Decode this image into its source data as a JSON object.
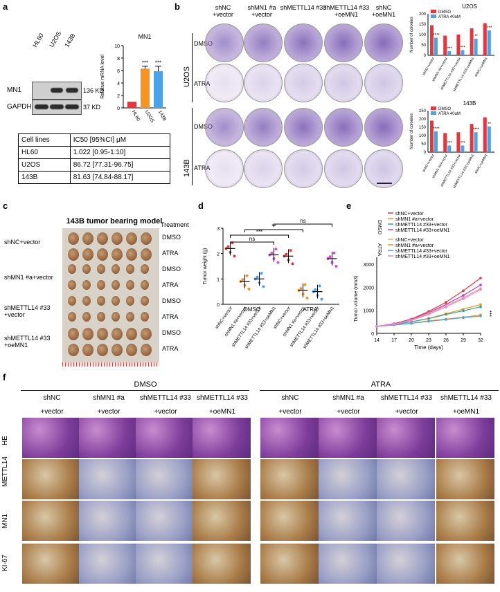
{
  "panels": {
    "a": "a",
    "b": "b",
    "c": "c",
    "d": "d",
    "e": "e",
    "f": "f"
  },
  "a": {
    "blot_lanes": [
      "HL60",
      "U2OS",
      "143B"
    ],
    "blot_rows": [
      {
        "name": "MN1",
        "kd": "136 KD"
      },
      {
        "name": "GAPDH",
        "kd": "37 KD"
      }
    ],
    "table": {
      "header": [
        "Cell lines",
        "IC50 [95%CI] μM"
      ],
      "rows": [
        [
          "HL60",
          "1.022 [0.95-1.10]"
        ],
        [
          "U2OS",
          "86.72 [77.31-96.75]"
        ],
        [
          "143B",
          "81.63 [74.84-88.17]"
        ]
      ]
    }
  },
  "chart_data": [
    {
      "type": "bar",
      "title": "MN1",
      "ylabel": "Relative mRNA level",
      "categories": [
        "HL60",
        "U2OS",
        "143B"
      ],
      "values": [
        1.0,
        6.3,
        5.9
      ],
      "errors": [
        0,
        0.4,
        0.8
      ],
      "colors": [
        "#e8343a",
        "#f7931e",
        "#4aa3e8"
      ],
      "annotations": [
        "",
        "***",
        "***"
      ],
      "ylim": [
        0,
        10
      ],
      "yticks": [
        0,
        2,
        4,
        6,
        8,
        10
      ]
    },
    {
      "type": "bar",
      "title": "U2OS",
      "ylabel": "Number of colonies",
      "categories": [
        "shNC+vector",
        "shMN1 #a+vector",
        "shMETTL14 #33+vector",
        "shMETTL14 #33+oeMN1",
        "shNC+oeMN1"
      ],
      "series": [
        {
          "name": "DMSO",
          "values": [
            145,
            95,
            100,
            130,
            155
          ],
          "color": "#e8343a"
        },
        {
          "name": "ATRA 40uM",
          "values": [
            85,
            20,
            25,
            80,
            120
          ],
          "color": "#4aa3e8"
        }
      ],
      "annotations": [
        "****",
        "***",
        "***",
        "**",
        "***"
      ],
      "ylim": [
        0,
        200
      ],
      "yticks": [
        0,
        50,
        100,
        150,
        200
      ]
    },
    {
      "type": "bar",
      "title": "143B",
      "ylabel": "Number of colonies",
      "categories": [
        "shNC+vector",
        "shMN1 #a+vector",
        "shMETTL14 #33+vector",
        "shMETTL14 #33+oeMN1",
        "shNC+oeMN1"
      ],
      "series": [
        {
          "name": "DMSO",
          "values": [
            190,
            115,
            120,
            170,
            210
          ],
          "color": "#e8343a"
        },
        {
          "name": "ATRA 40uM",
          "values": [
            125,
            40,
            40,
            120,
            155
          ],
          "color": "#4aa3e8"
        }
      ],
      "annotations": [
        "****",
        "***",
        "***",
        "****",
        "**"
      ],
      "ylim": [
        0,
        250
      ],
      "yticks": [
        0,
        50,
        100,
        150,
        200,
        250
      ]
    },
    {
      "type": "scatter",
      "ylabel": "Tumor weight (g)",
      "categories": [
        "shNC+vector",
        "shMN1 #a+vector",
        "shMETTL14 #33+vector",
        "shMETTL14 #33+oeMN1",
        "shNC+vector",
        "shMN1 #a+vector",
        "shMETTL14 #33+vector",
        "shMETTL14 #33+oeMN1"
      ],
      "means": [
        2.2,
        0.9,
        1.0,
        1.95,
        1.9,
        0.55,
        0.5,
        1.8
      ],
      "colors": [
        "#e8343a",
        "#f7931e",
        "#4aa3e8",
        "#d64fd0",
        "#e8343a",
        "#f7931e",
        "#4aa3e8",
        "#d64fd0"
      ],
      "groups": [
        "DMSO",
        "ATRA"
      ],
      "ylim": [
        0,
        3
      ],
      "yticks": [
        0,
        1,
        2,
        3
      ],
      "sig": [
        "ns",
        "***",
        "**",
        "ns"
      ]
    },
    {
      "type": "line",
      "xlabel": "Time (days)",
      "ylabel": "Tumor volume (mm3)",
      "x": [
        14,
        17,
        20,
        23,
        26,
        29,
        32
      ],
      "ylim": [
        0,
        3000
      ],
      "yticks": [
        0,
        1000,
        2000,
        3000
      ],
      "series": [
        {
          "name": "shNC+vector",
          "group": "DMSO",
          "color": "#e8343a",
          "values": [
            300,
            420,
            620,
            950,
            1350,
            1850,
            2400
          ]
        },
        {
          "name": "shMN1 #a+vector",
          "group": "DMSO",
          "color": "#f7931e",
          "values": [
            300,
            380,
            500,
            650,
            850,
            1050,
            1250
          ]
        },
        {
          "name": "shMETTL14 #33+vector",
          "group": "DMSO",
          "color": "#20a8a0",
          "values": [
            300,
            380,
            500,
            640,
            820,
            980,
            1150
          ]
        },
        {
          "name": "shMETTL14 #33+oeMN1",
          "group": "DMSO",
          "color": "#b13fbe",
          "values": [
            300,
            410,
            600,
            900,
            1250,
            1650,
            2100
          ]
        },
        {
          "name": "shNC+vector",
          "group": "ATRA",
          "color": "#f4a58a",
          "values": [
            300,
            400,
            580,
            860,
            1200,
            1550,
            1950
          ]
        },
        {
          "name": "shMN1 #a+vector",
          "group": "ATRA",
          "color": "#f7931e",
          "values": [
            300,
            360,
            440,
            540,
            620,
            700,
            800
          ]
        },
        {
          "name": "shMETTL14 #33+vector",
          "group": "ATRA",
          "color": "#4aa3e8",
          "values": [
            300,
            360,
            430,
            520,
            600,
            680,
            750
          ]
        },
        {
          "name": "shMETTL14 #33+oeMN1",
          "group": "ATRA",
          "color": "#e880e0",
          "values": [
            300,
            390,
            560,
            820,
            1150,
            1500,
            1900
          ]
        }
      ],
      "sig": "***"
    }
  ],
  "b": {
    "columns": [
      "shNC\n+vector",
      "shMN1 #a\n+vector",
      "shMETTL14 #33",
      "shMETTL14 #33\n+oeMN1",
      "shNC\n+oeMN1"
    ],
    "row_groups": [
      "U2OS",
      "143B"
    ],
    "row_labels": [
      "DMSO",
      "ATRA",
      "DMSO",
      "ATRA"
    ]
  },
  "c": {
    "title": "143B tumor bearing model",
    "treatment": "Treatment",
    "groups": [
      "shNC+vector",
      "shMN1 #a+vector",
      "shMETTL14 #33\n+vector",
      "shMETTL14 #33\n+oeMN1"
    ],
    "rows": [
      "DMSO",
      "ATRA",
      "DMSO",
      "ATRA",
      "DMSO",
      "ATRA",
      "DMSO",
      "ATRA"
    ]
  },
  "f": {
    "groups": [
      "DMSO",
      "ATRA"
    ],
    "col_top": [
      "shNC",
      "shMN1 #a",
      "shMETTL14 #33",
      "shMETTL14 #33",
      "shNC",
      "shMN1 #a",
      "shMETTL14 #33",
      "shMETTL14 #33"
    ],
    "col_bot": [
      "+vector",
      "+vector",
      "+vector",
      "+oeMN1",
      "+vector",
      "+vector",
      "+vector",
      "+oeMN1"
    ],
    "rows": [
      "HE",
      "METTL14",
      "MN1",
      "KI-67"
    ]
  },
  "colors": {
    "purple_dish": "#6b4aa8",
    "he": "#8a4ca6",
    "ihc": "#a97c48"
  }
}
